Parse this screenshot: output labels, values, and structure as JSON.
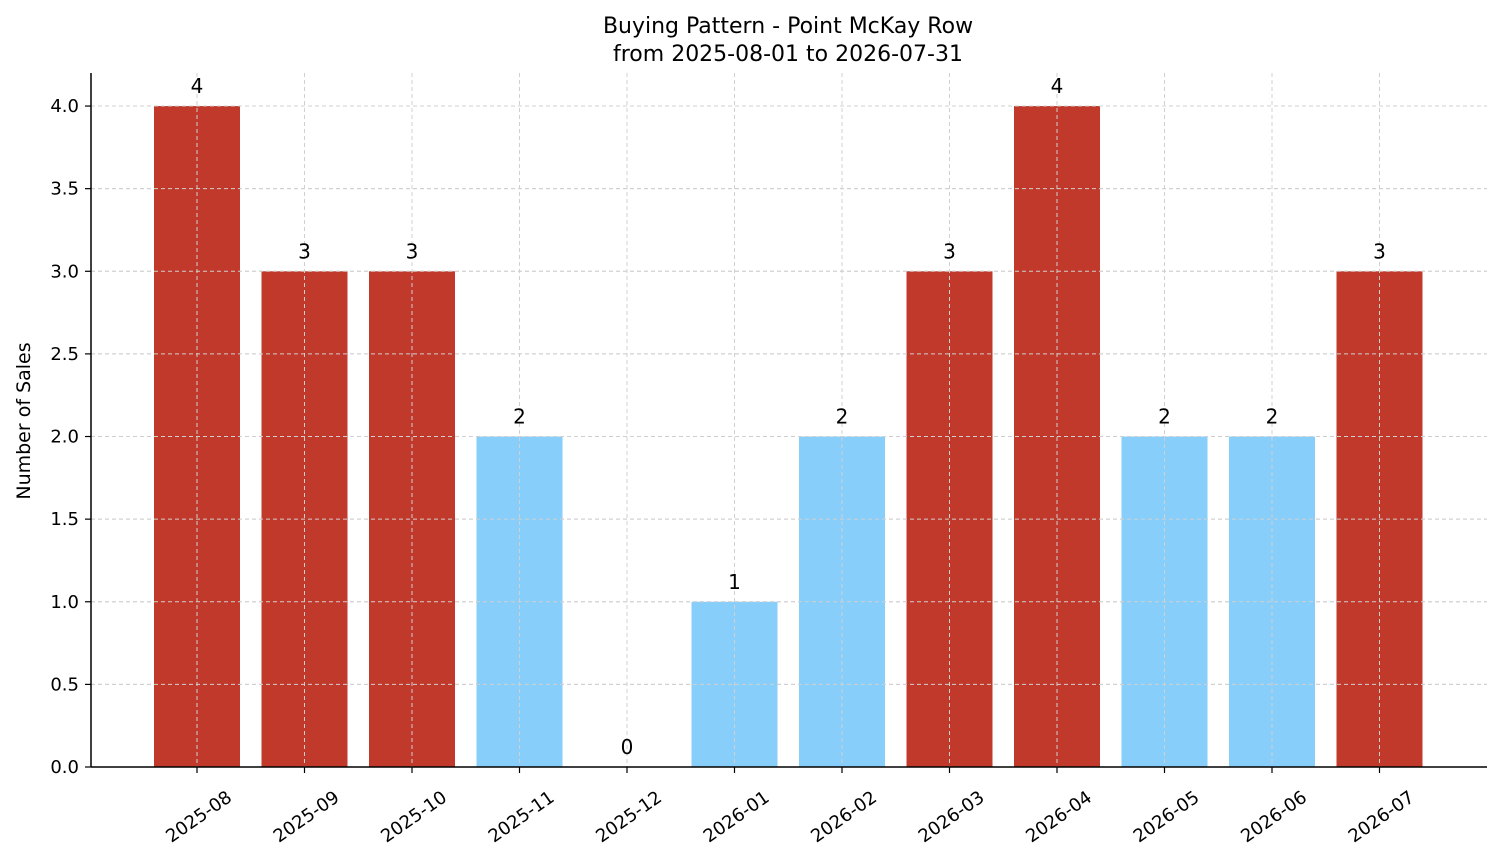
{
  "chart_data": {
    "type": "bar",
    "title": "Buying Pattern - Point McKay Row",
    "subtitle": "from 2025-08-01 to 2026-07-31",
    "xlabel": "",
    "ylabel": "Number of Sales",
    "categories": [
      "2025-08",
      "2025-09",
      "2025-10",
      "2025-11",
      "2025-12",
      "2026-01",
      "2026-02",
      "2026-03",
      "2026-04",
      "2026-05",
      "2026-06",
      "2026-07"
    ],
    "values": [
      4,
      3,
      3,
      2,
      0,
      1,
      2,
      3,
      4,
      2,
      2,
      3
    ],
    "data_labels": [
      "4",
      "3",
      "3",
      "2",
      "0",
      "1",
      "2",
      "3",
      "4",
      "2",
      "2",
      "3"
    ],
    "bar_colors": [
      "#c0392b",
      "#c0392b",
      "#c0392b",
      "#87cefa",
      "#87cefa",
      "#87cefa",
      "#87cefa",
      "#c0392b",
      "#c0392b",
      "#87cefa",
      "#87cefa",
      "#c0392b"
    ],
    "ylim": [
      0,
      4.2
    ],
    "yticks": [
      "0.0",
      "0.5",
      "1.0",
      "1.5",
      "2.0",
      "2.5",
      "3.0",
      "3.5",
      "4.0"
    ],
    "grid": true,
    "legend": "none"
  }
}
